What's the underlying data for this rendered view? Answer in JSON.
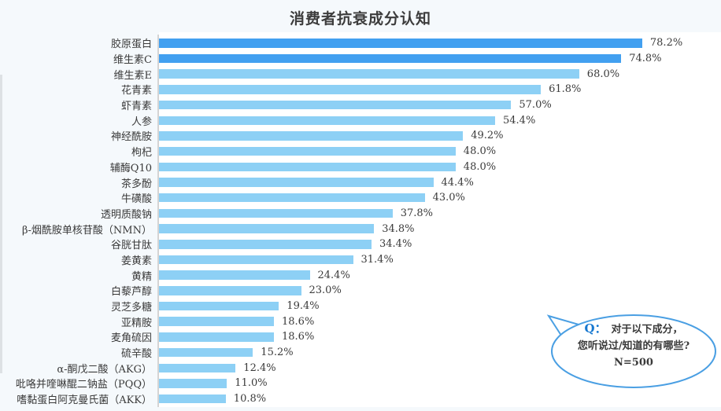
{
  "chart_data": {
    "type": "bar",
    "orientation": "horizontal",
    "title": "消费者抗衰成分认知",
    "categories": [
      "胶原蛋白",
      "维生素C",
      "维生素E",
      "花青素",
      "虾青素",
      "人参",
      "神经酰胺",
      "枸杞",
      "辅酶Q10",
      "茶多酚",
      "牛磺酸",
      "透明质酸钠",
      "β-烟酰胺单核苷酸（NMN）",
      "谷胱甘肽",
      "姜黄素",
      "黄精",
      "白藜芦醇",
      "灵芝多糖",
      "亚精胺",
      "麦角硫因",
      "硫辛酸",
      "α-酮戊二酸（AKG）",
      "吡咯并喹啉醌二钠盐（PQQ）",
      "嗜黏蛋白阿克曼氏菌（AKK）"
    ],
    "values": [
      78.2,
      74.8,
      68.0,
      61.8,
      57.0,
      54.4,
      49.2,
      48.0,
      48.0,
      44.4,
      43.0,
      37.8,
      34.8,
      34.4,
      31.4,
      24.4,
      23.0,
      19.4,
      18.6,
      18.6,
      15.2,
      12.4,
      11.0,
      10.8
    ],
    "value_suffix": "%",
    "xlim": [
      0,
      100
    ],
    "grid": false,
    "legend": "none",
    "bar_colors": {
      "highlight": "#42a0f0",
      "default": "#8dd0f5",
      "highlight_count": 2
    },
    "axis_line_color": "#d4d4d4"
  },
  "callout": {
    "q_label": "Q：",
    "line1": "对于以下成分，",
    "line2": "您听说过/知道的有哪些?",
    "line3": "N=500",
    "border_color": "#4a9fe3",
    "q_color": "#1778d0"
  },
  "colors": {
    "page_background": "#f5f9fc",
    "plot_background": "#ffffff",
    "text": "#3a3a3a"
  }
}
